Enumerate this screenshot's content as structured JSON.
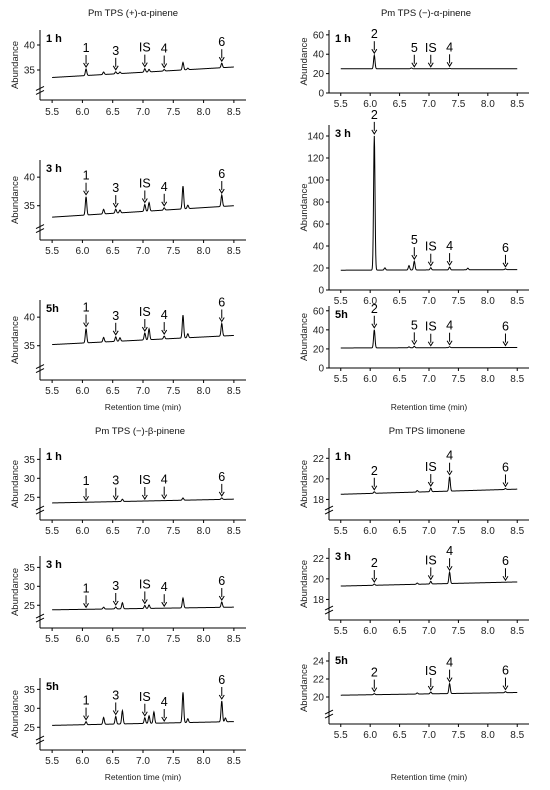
{
  "chart_data": [
    {
      "type": "line",
      "title": "Pm TPS (+)-α-pinene",
      "xlabel": "Retention time (min)",
      "ylabel": "Abundance",
      "xlim": [
        5.3,
        8.7
      ],
      "x_ticks": [
        "5.5",
        "6.0",
        "6.5",
        "7.0",
        "7.5",
        "8.0",
        "8.5"
      ],
      "axis_break": true,
      "panels": [
        {
          "label": "1 h",
          "ylim": [
            29,
            43
          ],
          "y_ticks": [
            "35",
            "40"
          ],
          "baseline": [
            33.5,
            35.6
          ],
          "peaks": [
            {
              "x": 6.06,
              "h": 1.3
            },
            {
              "x": 6.35,
              "h": 0.5
            },
            {
              "x": 6.55,
              "h": 0.4
            },
            {
              "x": 6.62,
              "h": 0.3
            },
            {
              "x": 7.03,
              "h": 0.7
            },
            {
              "x": 7.1,
              "h": 0.5
            },
            {
              "x": 7.35,
              "h": 0.3
            },
            {
              "x": 7.66,
              "h": 1.5
            },
            {
              "x": 7.74,
              "h": 0.3
            },
            {
              "x": 8.3,
              "h": 0.9
            }
          ],
          "annotations": [
            {
              "text": "1",
              "x": 6.06
            },
            {
              "text": "3",
              "x": 6.55
            },
            {
              "text": "IS",
              "x": 7.03
            },
            {
              "text": "4",
              "x": 7.35
            },
            {
              "text": "6",
              "x": 8.3
            }
          ]
        },
        {
          "label": "3 h",
          "ylim": [
            29,
            43
          ],
          "y_ticks": [
            "35",
            "40"
          ],
          "baseline": [
            33,
            35
          ],
          "peaks": [
            {
              "x": 6.06,
              "h": 3.2
            },
            {
              "x": 6.35,
              "h": 0.8
            },
            {
              "x": 6.55,
              "h": 0.7
            },
            {
              "x": 6.62,
              "h": 0.5
            },
            {
              "x": 7.03,
              "h": 1.2
            },
            {
              "x": 7.1,
              "h": 1.5
            },
            {
              "x": 7.35,
              "h": 0.4
            },
            {
              "x": 7.66,
              "h": 4
            },
            {
              "x": 7.74,
              "h": 0.6
            },
            {
              "x": 8.3,
              "h": 2
            }
          ],
          "annotations": [
            {
              "text": "1",
              "x": 6.06
            },
            {
              "text": "3",
              "x": 6.55
            },
            {
              "text": "IS",
              "x": 7.03
            },
            {
              "text": "4",
              "x": 7.35
            },
            {
              "text": "6",
              "x": 8.3
            }
          ]
        },
        {
          "label": "5h",
          "ylim": [
            29,
            43
          ],
          "y_ticks": [
            "35",
            "40"
          ],
          "baseline": [
            35.2,
            36.8
          ],
          "peaks": [
            {
              "x": 6.06,
              "h": 2.5
            },
            {
              "x": 6.35,
              "h": 0.8
            },
            {
              "x": 6.55,
              "h": 0.8
            },
            {
              "x": 6.62,
              "h": 0.6
            },
            {
              "x": 7.03,
              "h": 1.2
            },
            {
              "x": 7.1,
              "h": 1.9
            },
            {
              "x": 7.35,
              "h": 0.5
            },
            {
              "x": 7.66,
              "h": 4
            },
            {
              "x": 7.74,
              "h": 0.7
            },
            {
              "x": 8.3,
              "h": 2.2
            }
          ],
          "annotations": [
            {
              "text": "1",
              "x": 6.06
            },
            {
              "text": "3",
              "x": 6.55
            },
            {
              "text": "IS",
              "x": 7.03
            },
            {
              "text": "4",
              "x": 7.35
            },
            {
              "text": "6",
              "x": 8.3
            }
          ]
        }
      ]
    },
    {
      "type": "line",
      "title": "Pm TPS (−)-α-pinene",
      "xlabel": "Retention time (min)",
      "ylabel": "Abundance",
      "xlim": [
        5.3,
        8.7
      ],
      "x_ticks": [
        "5.5",
        "6.0",
        "6.5",
        "7.0",
        "7.5",
        "8.0",
        "8.5"
      ],
      "axis_break": false,
      "panels": [
        {
          "label": "1 h",
          "ylim": [
            0,
            65
          ],
          "y_ticks": [
            "0",
            "20",
            "40",
            "60"
          ],
          "baseline": [
            25,
            25
          ],
          "peaks": [
            {
              "x": 6.07,
              "h": 14
            },
            {
              "x": 6.7,
              "h": 0.8
            },
            {
              "x": 7.35,
              "h": 0.5
            }
          ],
          "annotations": [
            {
              "text": "2",
              "x": 6.07
            },
            {
              "text": "5",
              "x": 6.75
            },
            {
              "text": "IS",
              "x": 7.03
            },
            {
              "text": "4",
              "x": 7.35
            }
          ]
        },
        {
          "label": "3 h",
          "ylim": [
            0,
            150
          ],
          "y_ticks": [
            "0",
            "20",
            "40",
            "60",
            "80",
            "100",
            "120",
            "140"
          ],
          "baseline": [
            18,
            18.5
          ],
          "peaks": [
            {
              "x": 6.07,
              "h": 122
            },
            {
              "x": 6.25,
              "h": 2
            },
            {
              "x": 6.66,
              "h": 4
            },
            {
              "x": 6.75,
              "h": 8
            },
            {
              "x": 7.03,
              "h": 2
            },
            {
              "x": 7.35,
              "h": 2.5
            },
            {
              "x": 7.66,
              "h": 1.5
            },
            {
              "x": 8.3,
              "h": 0.8
            }
          ],
          "annotations": [
            {
              "text": "2",
              "x": 6.07
            },
            {
              "text": "5",
              "x": 6.75
            },
            {
              "text": "IS",
              "x": 7.03
            },
            {
              "text": "4",
              "x": 7.35
            },
            {
              "text": "6",
              "x": 8.3
            }
          ]
        },
        {
          "label": "5h",
          "ylim": [
            0,
            65
          ],
          "y_ticks": [
            "0",
            "20",
            "40",
            "60"
          ],
          "baseline": [
            21,
            21.5
          ],
          "peaks": [
            {
              "x": 6.07,
              "h": 19
            },
            {
              "x": 6.66,
              "h": 1
            },
            {
              "x": 6.75,
              "h": 1.5
            },
            {
              "x": 7.35,
              "h": 1
            }
          ],
          "annotations": [
            {
              "text": "2",
              "x": 6.07
            },
            {
              "text": "5",
              "x": 6.75
            },
            {
              "text": "IS",
              "x": 7.03
            },
            {
              "text": "4",
              "x": 7.35
            },
            {
              "text": "6",
              "x": 8.3
            }
          ]
        }
      ]
    },
    {
      "type": "line",
      "title": "Pm TPS (−)-β-pinene",
      "xlabel": "Retention time (min)",
      "ylabel": "Abundance",
      "xlim": [
        5.3,
        8.7
      ],
      "x_ticks": [
        "5.5",
        "6.0",
        "6.5",
        "7.0",
        "7.5",
        "8.0",
        "8.5"
      ],
      "axis_break": true,
      "panels": [
        {
          "label": "1 h",
          "ylim": [
            19,
            38
          ],
          "y_ticks": [
            "25",
            "30",
            "35"
          ],
          "baseline": [
            23.5,
            24.5
          ],
          "peaks": [
            {
              "x": 6.66,
              "h": 0.6
            },
            {
              "x": 7.66,
              "h": 0.6
            },
            {
              "x": 8.3,
              "h": 0.4
            }
          ],
          "annotations": [
            {
              "text": "1",
              "x": 6.06
            },
            {
              "text": "3",
              "x": 6.55
            },
            {
              "text": "IS",
              "x": 7.03
            },
            {
              "text": "4",
              "x": 7.35
            },
            {
              "text": "6",
              "x": 8.3
            }
          ]
        },
        {
          "label": "3 h",
          "ylim": [
            19,
            38
          ],
          "y_ticks": [
            "25",
            "30",
            "35"
          ],
          "baseline": [
            23.8,
            24.5
          ],
          "peaks": [
            {
              "x": 6.35,
              "h": 0.5
            },
            {
              "x": 6.55,
              "h": 0.5
            },
            {
              "x": 6.66,
              "h": 1.6
            },
            {
              "x": 7.03,
              "h": 0.8
            },
            {
              "x": 7.1,
              "h": 0.9
            },
            {
              "x": 7.66,
              "h": 2.6
            },
            {
              "x": 8.3,
              "h": 1.4
            }
          ],
          "annotations": [
            {
              "text": "1",
              "x": 6.06
            },
            {
              "text": "3",
              "x": 6.55
            },
            {
              "text": "IS",
              "x": 7.03
            },
            {
              "text": "4",
              "x": 7.35
            },
            {
              "text": "6",
              "x": 8.3
            }
          ]
        },
        {
          "label": "5h",
          "ylim": [
            19,
            38
          ],
          "y_ticks": [
            "25",
            "30",
            "35"
          ],
          "baseline": [
            25.5,
            26.5
          ],
          "peaks": [
            {
              "x": 6.06,
              "h": 0.8
            },
            {
              "x": 6.35,
              "h": 1.8
            },
            {
              "x": 6.55,
              "h": 2
            },
            {
              "x": 6.66,
              "h": 3.5
            },
            {
              "x": 7.03,
              "h": 1.5
            },
            {
              "x": 7.1,
              "h": 2
            },
            {
              "x": 7.18,
              "h": 3
            },
            {
              "x": 7.66,
              "h": 8
            },
            {
              "x": 7.74,
              "h": 1
            },
            {
              "x": 8.3,
              "h": 5.5
            },
            {
              "x": 8.36,
              "h": 1
            }
          ],
          "annotations": [
            {
              "text": "1",
              "x": 6.06
            },
            {
              "text": "3",
              "x": 6.55
            },
            {
              "text": "IS",
              "x": 7.03
            },
            {
              "text": "4",
              "x": 7.35
            },
            {
              "text": "6",
              "x": 8.3
            }
          ]
        }
      ]
    },
    {
      "type": "line",
      "title": "Pm TPS limonene",
      "xlabel": "Retention time (min)",
      "ylabel": "Abundance",
      "xlim": [
        5.3,
        8.7
      ],
      "x_ticks": [
        "5.5",
        "6.0",
        "6.5",
        "7.0",
        "7.5",
        "8.0",
        "8.5"
      ],
      "axis_break": true,
      "panels": [
        {
          "label": "1 h",
          "ylim": [
            16,
            23
          ],
          "y_ticks": [
            "18",
            "20",
            "22"
          ],
          "baseline": [
            18.5,
            19
          ],
          "peaks": [
            {
              "x": 6.07,
              "h": 0.15
            },
            {
              "x": 6.8,
              "h": 0.15
            },
            {
              "x": 7.03,
              "h": 0.35
            },
            {
              "x": 7.35,
              "h": 1.4
            },
            {
              "x": 8.3,
              "h": 0.1
            }
          ],
          "annotations": [
            {
              "text": "2",
              "x": 6.07
            },
            {
              "text": "IS",
              "x": 7.03
            },
            {
              "text": "4",
              "x": 7.35
            },
            {
              "text": "6",
              "x": 8.3
            }
          ]
        },
        {
          "label": "3 h",
          "ylim": [
            16,
            23
          ],
          "y_ticks": [
            "18",
            "20",
            "22"
          ],
          "baseline": [
            19.3,
            19.7
          ],
          "peaks": [
            {
              "x": 6.07,
              "h": 0.12
            },
            {
              "x": 6.8,
              "h": 0.12
            },
            {
              "x": 7.03,
              "h": 0.25
            },
            {
              "x": 7.35,
              "h": 1.1
            }
          ],
          "annotations": [
            {
              "text": "2",
              "x": 6.07
            },
            {
              "text": "IS",
              "x": 7.03
            },
            {
              "text": "4",
              "x": 7.35
            },
            {
              "text": "6",
              "x": 8.3
            }
          ]
        },
        {
          "label": "5h",
          "ylim": [
            17,
            25
          ],
          "y_ticks": [
            "20",
            "22",
            "24"
          ],
          "baseline": [
            20.2,
            20.5
          ],
          "peaks": [
            {
              "x": 6.07,
              "h": 0.12
            },
            {
              "x": 6.8,
              "h": 0.12
            },
            {
              "x": 7.03,
              "h": 0.2
            },
            {
              "x": 7.35,
              "h": 1.1
            },
            {
              "x": 8.3,
              "h": 0.12
            }
          ],
          "annotations": [
            {
              "text": "2",
              "x": 6.07
            },
            {
              "text": "IS",
              "x": 7.03
            },
            {
              "text": "4",
              "x": 7.35
            },
            {
              "text": "6",
              "x": 8.3
            }
          ]
        }
      ]
    }
  ]
}
